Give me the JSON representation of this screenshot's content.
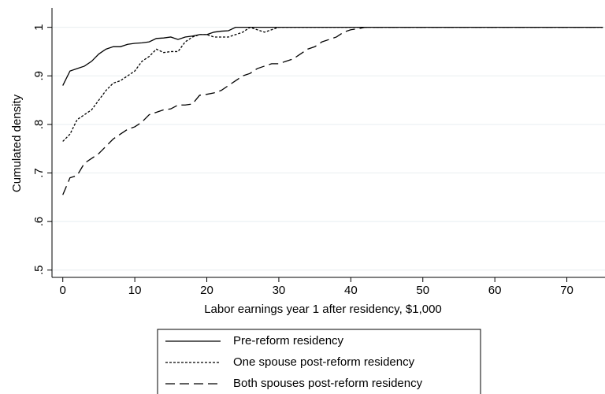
{
  "chart_data": {
    "type": "line",
    "x_label": "Labor earnings year 1 after residency, $1,000",
    "y_label": "Cumulated density",
    "x": [
      0,
      1,
      2,
      3,
      4,
      5,
      6,
      7,
      8,
      9,
      10,
      11,
      12,
      13,
      14,
      15,
      16,
      17,
      18,
      19,
      20,
      21,
      22,
      23,
      24,
      25,
      26,
      27,
      28,
      29,
      30,
      31,
      32,
      33,
      34,
      35,
      36,
      37,
      38,
      39,
      40,
      41,
      42,
      75
    ],
    "series": [
      {
        "name": "Pre-reform residency",
        "color": "#000000",
        "style": "solid",
        "values": [
          0.88,
          0.91,
          0.915,
          0.92,
          0.93,
          0.945,
          0.955,
          0.96,
          0.96,
          0.965,
          0.967,
          0.968,
          0.97,
          0.977,
          0.978,
          0.98,
          0.975,
          0.98,
          0.982,
          0.985,
          0.985,
          0.99,
          0.992,
          0.993,
          1,
          1,
          1,
          1,
          1,
          1,
          1,
          1,
          1,
          1,
          1,
          1,
          1,
          1,
          1,
          1,
          1,
          1,
          1,
          1
        ]
      },
      {
        "name": "One spouse post-reform residency",
        "color": "#000000",
        "style": "dotted",
        "values": [
          0.765,
          0.78,
          0.81,
          0.82,
          0.83,
          0.85,
          0.87,
          0.885,
          0.89,
          0.9,
          0.91,
          0.93,
          0.94,
          0.955,
          0.948,
          0.95,
          0.95,
          0.97,
          0.98,
          0.985,
          0.985,
          0.98,
          0.98,
          0.98,
          0.985,
          0.99,
          1,
          0.995,
          0.99,
          0.995,
          1,
          1,
          1,
          1,
          1,
          1,
          1,
          1,
          1,
          1,
          1,
          1,
          1,
          1
        ]
      },
      {
        "name": "Both spouses post-reform residency",
        "color": "#000000",
        "style": "dashed",
        "values": [
          0.655,
          0.69,
          0.695,
          0.72,
          0.73,
          0.74,
          0.755,
          0.77,
          0.78,
          0.79,
          0.795,
          0.805,
          0.82,
          0.825,
          0.83,
          0.832,
          0.84,
          0.84,
          0.842,
          0.86,
          0.862,
          0.865,
          0.87,
          0.88,
          0.89,
          0.9,
          0.905,
          0.915,
          0.92,
          0.925,
          0.925,
          0.93,
          0.935,
          0.945,
          0.955,
          0.96,
          0.97,
          0.975,
          0.98,
          0.99,
          0.995,
          0.997,
          1,
          1
        ]
      }
    ],
    "xlim": [
      -1.5,
      75.3
    ],
    "xticks": [
      0,
      10,
      20,
      30,
      40,
      50,
      60,
      70
    ],
    "ylim": [
      0.485,
      1.04
    ],
    "yticks": [
      {
        "value": 0.5,
        "label": ".5"
      },
      {
        "value": 0.6,
        "label": ".6"
      },
      {
        "value": 0.7,
        "label": ".7"
      },
      {
        "value": 0.8,
        "label": ".8"
      },
      {
        "value": 0.9,
        "label": ".9"
      },
      1
    ],
    "grid": true,
    "legend": "bottom"
  }
}
